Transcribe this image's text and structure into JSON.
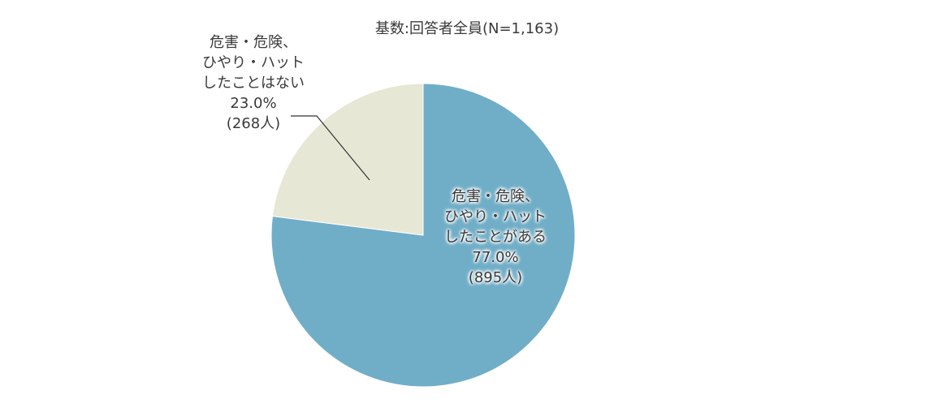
{
  "chart_data": {
    "type": "pie",
    "title": "基数:回答者全員(N=1,163)",
    "slices": [
      {
        "label_lines": [
          "危害・危険、",
          "ひやり・ハット",
          "したことがある"
        ],
        "value": 77.0,
        "value_label": "77.0%",
        "count_label": "(895人)",
        "color": "#70aec8"
      },
      {
        "label_lines": [
          "危害・危険、",
          "ひやり・ハット",
          "したことはない"
        ],
        "value": 23.0,
        "value_label": "23.0%",
        "count_label": "(268人)",
        "color": "#e6e7d4"
      }
    ],
    "start_angle": "12 o'clock",
    "direction": "clockwise"
  }
}
